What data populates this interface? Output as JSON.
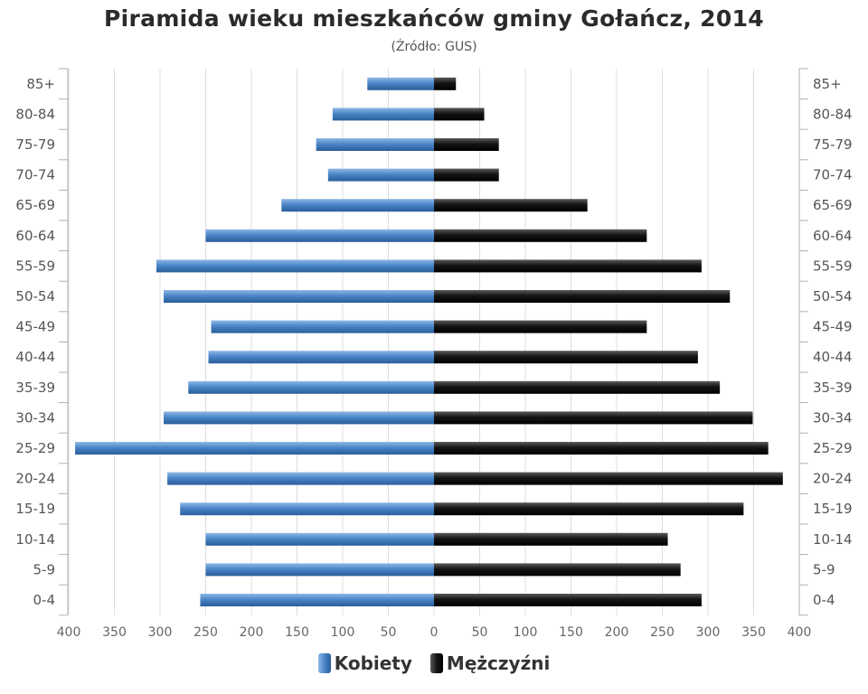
{
  "colors": {
    "women": "#4a86c8",
    "men": "#1a1a1a",
    "grid": "#dcdcdc",
    "axis": "#b0b0b0"
  },
  "chart_data": {
    "type": "bar",
    "orientation": "horizontal-pyramid",
    "title": "Piramida wieku mieszkańców gminy Gołańcz, 2014",
    "subtitle": "(Źródło: GUS)",
    "categories": [
      "0-4",
      "5-9",
      "10-14",
      "15-19",
      "20-24",
      "25-29",
      "30-34",
      "35-39",
      "40-44",
      "45-49",
      "50-54",
      "55-59",
      "60-64",
      "65-69",
      "70-74",
      "75-79",
      "80-84",
      "85+"
    ],
    "series": [
      {
        "name": "Kobiety",
        "side": "left",
        "values": [
          256,
          250,
          250,
          278,
          292,
          393,
          296,
          269,
          247,
          244,
          296,
          304,
          250,
          167,
          116,
          129,
          111,
          73
        ]
      },
      {
        "name": "Mężczyźni",
        "side": "right",
        "values": [
          293,
          270,
          256,
          339,
          382,
          366,
          349,
          313,
          289,
          233,
          324,
          293,
          233,
          168,
          71,
          71,
          55,
          24
        ]
      }
    ],
    "x_ticks": [
      "400",
      "350",
      "300",
      "250",
      "200",
      "150",
      "100",
      "50",
      "0",
      "50",
      "100",
      "150",
      "200",
      "250",
      "300",
      "350",
      "400"
    ],
    "xlim": [
      -400,
      400
    ],
    "grid": "vertical",
    "legend": "bottom-center"
  }
}
